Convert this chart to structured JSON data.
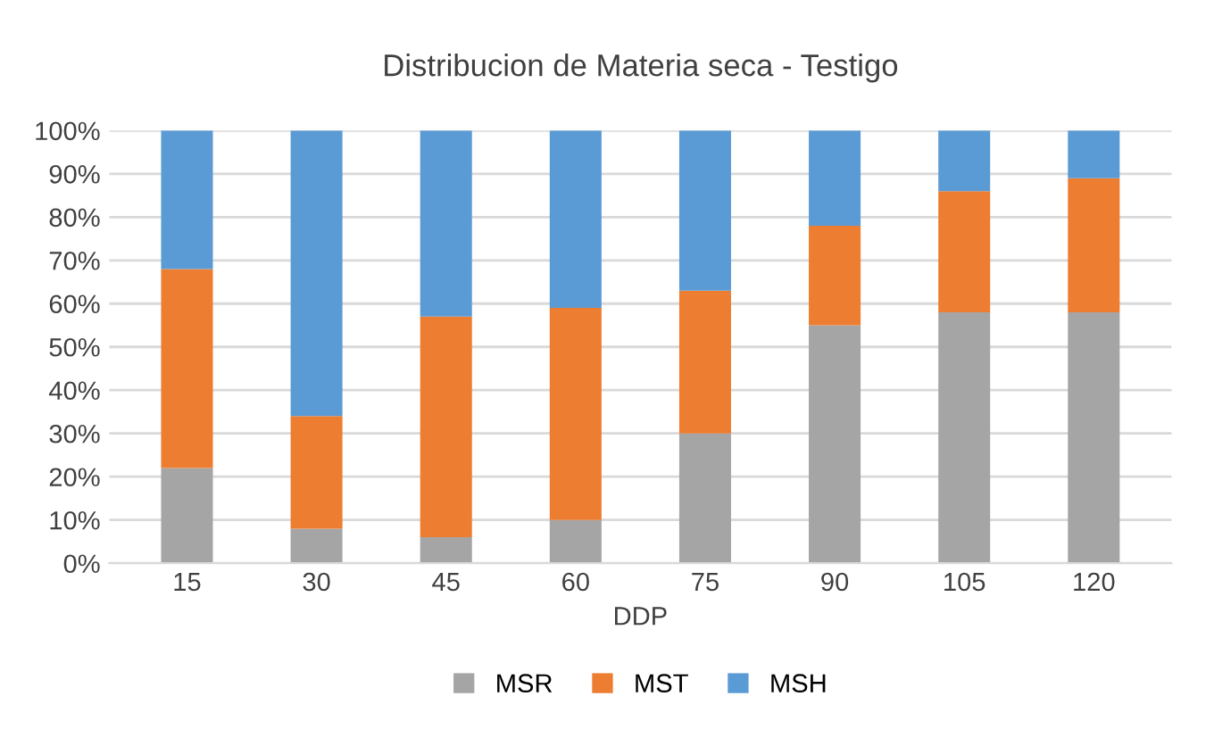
{
  "chart_data": {
    "type": "bar",
    "stacked": true,
    "title": "Distribucion de Materia seca - Testigo",
    "xlabel": "DDP",
    "categories": [
      "15",
      "30",
      "45",
      "60",
      "75",
      "90",
      "105",
      "120"
    ],
    "series": [
      {
        "name": "MSR",
        "color": "#a5a5a5",
        "values": [
          22,
          8,
          6,
          10,
          30,
          55,
          58,
          58
        ]
      },
      {
        "name": "MST",
        "color": "#ed7d31",
        "values": [
          46,
          26,
          51,
          49,
          33,
          23,
          28,
          31
        ]
      },
      {
        "name": "MSH",
        "color": "#5b9bd5",
        "values": [
          32,
          66,
          43,
          41,
          37,
          22,
          14,
          11
        ]
      }
    ],
    "ylim": [
      0,
      100
    ],
    "yticks": [
      {
        "value": 0,
        "label": "0%"
      },
      {
        "value": 10,
        "label": "10%"
      },
      {
        "value": 20,
        "label": "20%"
      },
      {
        "value": 30,
        "label": "30%"
      },
      {
        "value": 40,
        "label": "40%"
      },
      {
        "value": 50,
        "label": "50%"
      },
      {
        "value": 60,
        "label": "60%"
      },
      {
        "value": 70,
        "label": "70%"
      },
      {
        "value": 80,
        "label": "80%"
      },
      {
        "value": 90,
        "label": "90%"
      },
      {
        "value": 100,
        "label": "100%"
      }
    ],
    "grid": "y",
    "legend": "bottom"
  }
}
